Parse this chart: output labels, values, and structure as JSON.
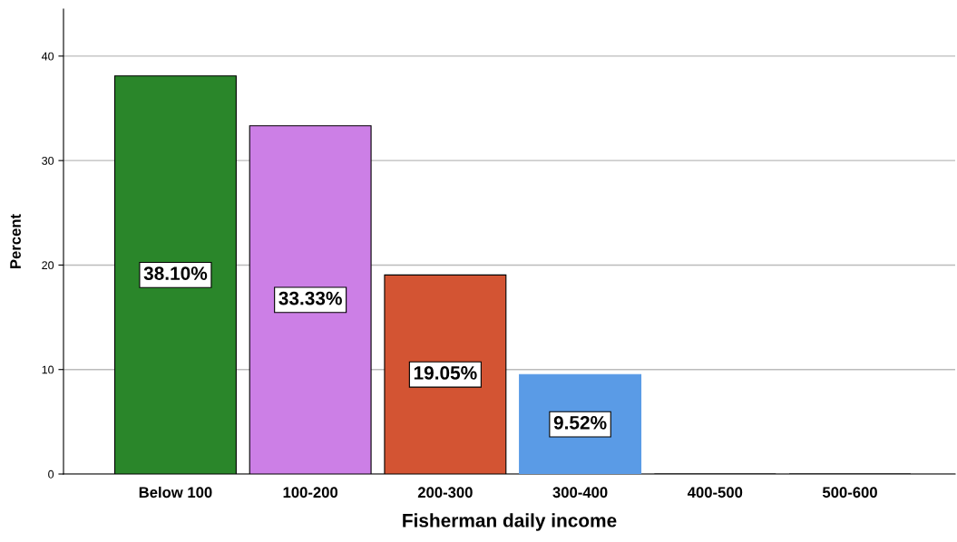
{
  "chart_data": {
    "type": "bar",
    "xlabel": "Fisherman daily income",
    "ylabel": "Percent",
    "categories": [
      "Below 100",
      "100-200",
      "200-300",
      "300-400",
      "400-500",
      "500-600"
    ],
    "values": [
      38.1,
      33.33,
      19.05,
      9.52,
      0,
      0
    ],
    "colors": [
      "#2a862a",
      "#cc7fe6",
      "#d35433",
      "#5a9be6",
      "#888888",
      "#888888"
    ],
    "value_labels": [
      "38.10%",
      "33.33%",
      "19.05%",
      "9.52%",
      null,
      null
    ],
    "ylim": [
      0,
      44.5
    ],
    "yticks": [
      0,
      10,
      20,
      30,
      40
    ],
    "grid": "y",
    "legend": false
  }
}
